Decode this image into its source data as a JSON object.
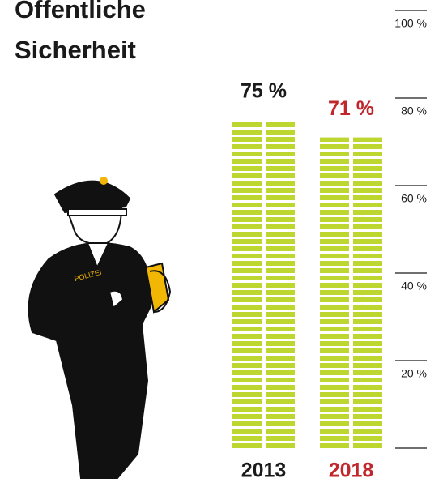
{
  "chart_data": {
    "type": "bar",
    "title": "Öffentliche Sicherheit",
    "categories": [
      "2013",
      "2018"
    ],
    "values": [
      75,
      71
    ],
    "value_labels": [
      "75 %",
      "71 %"
    ],
    "color": "#bdd630",
    "label_colors": [
      "#1a1a1a",
      "#c0272d"
    ],
    "ylim": [
      0,
      100
    ],
    "yticks": [
      {
        "value": 20,
        "label": "20 %"
      },
      {
        "value": 40,
        "label": "40 %"
      },
      {
        "value": 60,
        "label": "60 %"
      },
      {
        "value": 80,
        "label": "80 %"
      },
      {
        "value": 100,
        "label": "100 %"
      }
    ],
    "grid": false
  }
}
